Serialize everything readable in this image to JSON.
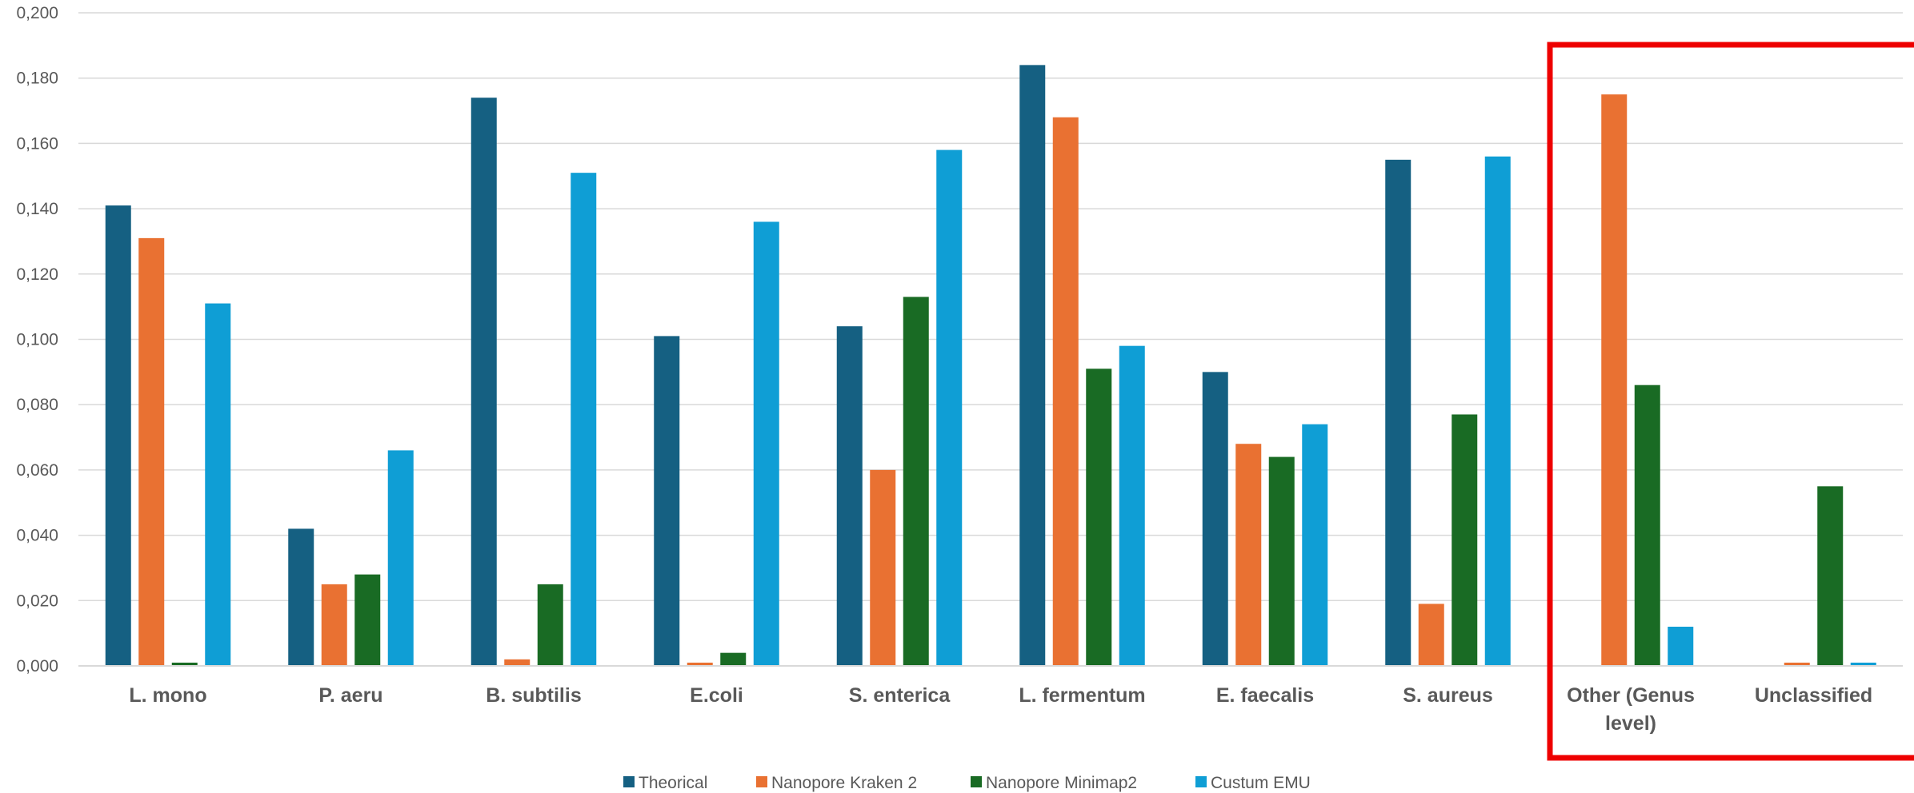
{
  "chart_data": {
    "type": "bar",
    "title": "",
    "xlabel": "",
    "ylabel": "",
    "ylim": [
      0,
      0.2
    ],
    "yticks": [
      0,
      0.02,
      0.04,
      0.06,
      0.08,
      0.1,
      0.12,
      0.14,
      0.16,
      0.18,
      0.2
    ],
    "ytick_labels": [
      "0,000",
      "0,020",
      "0,040",
      "0,060",
      "0,080",
      "0,100",
      "0,120",
      "0,140",
      "0,160",
      "0,180",
      "0,200"
    ],
    "grid": true,
    "legend_position": "bottom",
    "categories": [
      [
        "L. mono"
      ],
      [
        "P. aeru"
      ],
      [
        "B. subtilis"
      ],
      [
        "E.coli"
      ],
      [
        "S. enterica"
      ],
      [
        "L. fermentum"
      ],
      [
        "E. faecalis"
      ],
      [
        "S. aureus"
      ],
      [
        "Other (Genus",
        "level)"
      ],
      [
        "Unclassified"
      ]
    ],
    "series": [
      {
        "name": "Theorical",
        "color": "#156082",
        "values": [
          0.141,
          0.042,
          0.174,
          0.101,
          0.104,
          0.184,
          0.09,
          0.155,
          0,
          0
        ]
      },
      {
        "name": "Nanopore Kraken 2",
        "color": "#E97132",
        "values": [
          0.131,
          0.025,
          0.002,
          0.001,
          0.06,
          0.168,
          0.068,
          0.019,
          0.175,
          0.001
        ]
      },
      {
        "name": "Nanopore Minimap2",
        "color": "#196B24",
        "values": [
          0.001,
          0.028,
          0.025,
          0.004,
          0.113,
          0.091,
          0.064,
          0.077,
          0.086,
          0.055
        ]
      },
      {
        "name": "Custum EMU",
        "color": "#0F9ED5",
        "values": [
          0.111,
          0.066,
          0.151,
          0.136,
          0.158,
          0.098,
          0.074,
          0.156,
          0.012,
          0.001
        ]
      }
    ],
    "highlight": {
      "shape": "rectangle",
      "color": "#EE0000",
      "categories": [
        "Other (Genus level)",
        "Unclassified"
      ]
    }
  }
}
